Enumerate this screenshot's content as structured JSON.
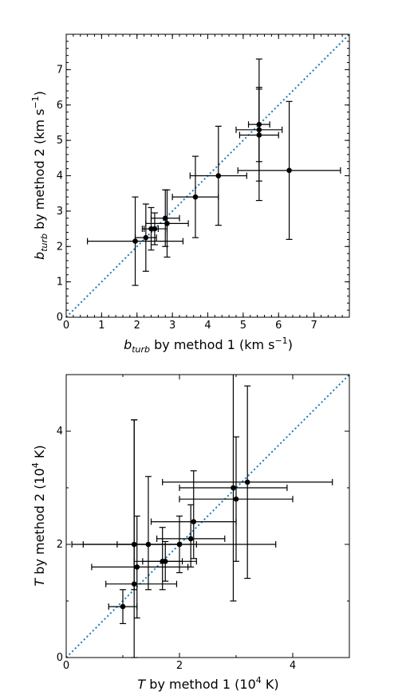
{
  "chart_data": [
    {
      "type": "scatter",
      "xlabel_main": "b",
      "xlabel_sub": "turb",
      "xlabel_rest": " by method 1 (km s",
      "xlabel_sup": "−1",
      "xlabel_end": ")",
      "ylabel_main": "b",
      "ylabel_sub": "turb",
      "ylabel_rest": " by method 2 (km s",
      "ylabel_sup": "−1",
      "ylabel_end": ")",
      "xlim": [
        0,
        8
      ],
      "ylim": [
        0,
        8
      ],
      "xticks": [
        0,
        1,
        2,
        3,
        4,
        5,
        6,
        7
      ],
      "yticks": [
        0,
        1,
        2,
        3,
        4,
        5,
        6,
        7
      ],
      "xminor": 0.2,
      "yminor": 0.2,
      "diagonal": "y = x",
      "grid": false,
      "points": [
        {
          "x": 1.95,
          "y": 2.15,
          "xerr": [
            1.35,
            1.35
          ],
          "yerr": [
            1.25,
            1.25
          ]
        },
        {
          "x": 2.25,
          "y": 2.25,
          "xerr": [
            0.3,
            0.3
          ],
          "yerr": [
            0.95,
            0.95
          ]
        },
        {
          "x": 2.4,
          "y": 2.5,
          "xerr": [
            0.2,
            0.2
          ],
          "yerr": [
            0.6,
            0.6
          ]
        },
        {
          "x": 2.5,
          "y": 2.5,
          "xerr": [
            0.35,
            0.35
          ],
          "yerr": [
            0.45,
            0.45
          ]
        },
        {
          "x": 2.85,
          "y": 2.65,
          "xerr": [
            0.6,
            0.6
          ],
          "yerr": [
            0.95,
            0.95
          ]
        },
        {
          "x": 2.8,
          "y": 2.8,
          "xerr": [
            0.4,
            0.4
          ],
          "yerr": [
            0.8,
            0.8
          ]
        },
        {
          "x": 3.65,
          "y": 3.4,
          "xerr": [
            0.65,
            0.65
          ],
          "yerr": [
            1.15,
            1.15
          ]
        },
        {
          "x": 4.3,
          "y": 4.0,
          "xerr": [
            0.8,
            0.8
          ],
          "yerr": [
            1.4,
            1.4
          ]
        },
        {
          "x": 6.3,
          "y": 4.15,
          "xerr": [
            1.45,
            1.45
          ],
          "yerr": [
            1.95,
            1.95
          ]
        },
        {
          "x": 5.45,
          "y": 5.15,
          "xerr": [
            0.55,
            0.55
          ],
          "yerr": [
            1.3,
            1.3
          ]
        },
        {
          "x": 5.45,
          "y": 5.3,
          "xerr": [
            0.65,
            0.65
          ],
          "yerr": [
            2.0,
            2.0
          ]
        },
        {
          "x": 5.45,
          "y": 5.45,
          "xerr": [
            0.3,
            0.3
          ],
          "yerr": [
            1.05,
            1.05
          ]
        }
      ]
    },
    {
      "type": "scatter",
      "xlabel_main": "T",
      "xlabel_rest": " by method 1 (10",
      "xlabel_sup": "4",
      "xlabel_end": " K)",
      "ylabel_main": "T",
      "ylabel_rest": " by method 2 (10",
      "ylabel_sup": "4",
      "ylabel_end": " K)",
      "xlim": [
        0,
        5
      ],
      "ylim": [
        0,
        5
      ],
      "xticks": [
        0,
        2,
        4
      ],
      "yticks": [
        0,
        2,
        4
      ],
      "xminor": 1,
      "yminor": 1,
      "diagonal": "y = x",
      "grid": false,
      "points": [
        {
          "x": 1.0,
          "y": 0.9,
          "xerr": [
            0.25,
            0.25
          ],
          "yerr": [
            0.3,
            0.3
          ]
        },
        {
          "x": 1.2,
          "y": 1.3,
          "xerr": [
            0.5,
            0.75
          ],
          "yerr": [
            1.3,
            2.9
          ]
        },
        {
          "x": 1.2,
          "y": 2.0,
          "xerr": [
            1.1,
            1.1
          ],
          "yerr": [
            0.8,
            2.2
          ]
        },
        {
          "x": 1.25,
          "y": 1.6,
          "xerr": [
            0.8,
            0.9
          ],
          "yerr": [
            0.9,
            0.9
          ]
        },
        {
          "x": 1.45,
          "y": 2.0,
          "xerr": [
            0.55,
            0.55
          ],
          "yerr": [
            0.8,
            1.2
          ]
        },
        {
          "x": 1.7,
          "y": 1.7,
          "xerr": [
            0.35,
            0.35
          ],
          "yerr": [
            0.5,
            0.6
          ]
        },
        {
          "x": 1.75,
          "y": 1.7,
          "xerr": [
            0.55,
            0.55
          ],
          "yerr": [
            0.35,
            0.35
          ]
        },
        {
          "x": 2.0,
          "y": 2.0,
          "xerr": [
            1.7,
            1.7
          ],
          "yerr": [
            0.5,
            0.5
          ]
        },
        {
          "x": 2.2,
          "y": 2.1,
          "xerr": [
            0.6,
            0.6
          ],
          "yerr": [
            0.5,
            0.6
          ]
        },
        {
          "x": 2.25,
          "y": 2.4,
          "xerr": [
            0.75,
            0.75
          ],
          "yerr": [
            0.65,
            0.9
          ]
        },
        {
          "x": 2.95,
          "y": 3.0,
          "xerr": [
            0.95,
            0.95
          ],
          "yerr": [
            2.0,
            2.3
          ]
        },
        {
          "x": 3.0,
          "y": 2.8,
          "xerr": [
            1.0,
            1.0
          ],
          "yerr": [
            1.1,
            1.1
          ]
        },
        {
          "x": 3.2,
          "y": 3.1,
          "xerr": [
            1.5,
            1.5
          ],
          "yerr": [
            1.7,
            1.7
          ]
        }
      ]
    }
  ]
}
